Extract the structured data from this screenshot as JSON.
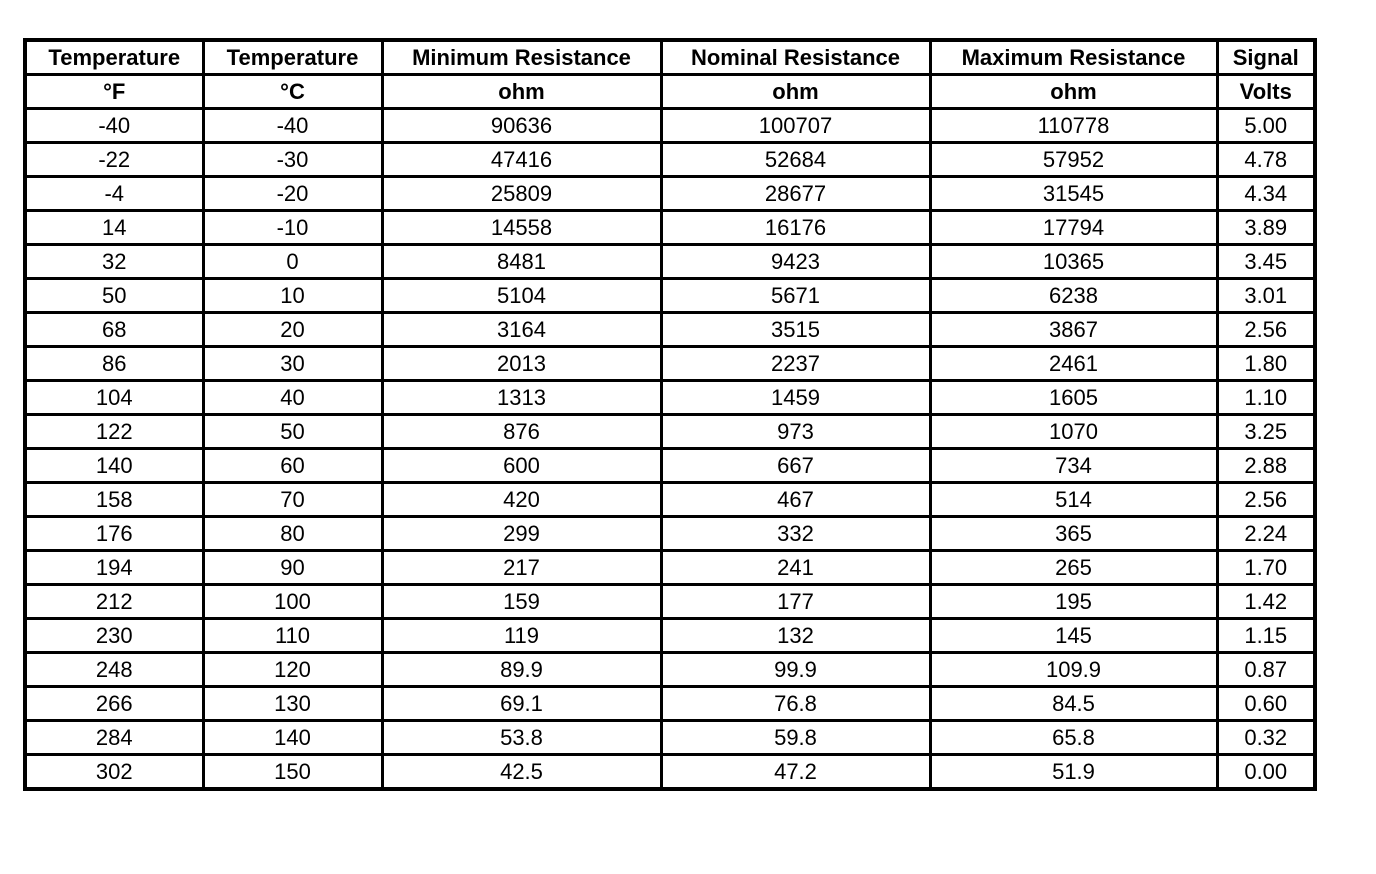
{
  "headers": [
    "Temperature",
    "Temperature",
    "Minimum Resistance",
    "Nominal Resistance",
    "Maximum Resistance",
    "Signal"
  ],
  "units": [
    "°F",
    "°C",
    "ohm",
    "ohm",
    "ohm",
    "Volts"
  ],
  "rows": [
    [
      "-40",
      "-40",
      "90636",
      "100707",
      "110778",
      "5.00"
    ],
    [
      "-22",
      "-30",
      "47416",
      "52684",
      "57952",
      "4.78"
    ],
    [
      "-4",
      "-20",
      "25809",
      "28677",
      "31545",
      "4.34"
    ],
    [
      "14",
      "-10",
      "14558",
      "16176",
      "17794",
      "3.89"
    ],
    [
      "32",
      "0",
      "8481",
      "9423",
      "10365",
      "3.45"
    ],
    [
      "50",
      "10",
      "5104",
      "5671",
      "6238",
      "3.01"
    ],
    [
      "68",
      "20",
      "3164",
      "3515",
      "3867",
      "2.56"
    ],
    [
      "86",
      "30",
      "2013",
      "2237",
      "2461",
      "1.80"
    ],
    [
      "104",
      "40",
      "1313",
      "1459",
      "1605",
      "1.10"
    ],
    [
      "122",
      "50",
      "876",
      "973",
      "1070",
      "3.25"
    ],
    [
      "140",
      "60",
      "600",
      "667",
      "734",
      "2.88"
    ],
    [
      "158",
      "70",
      "420",
      "467",
      "514",
      "2.56"
    ],
    [
      "176",
      "80",
      "299",
      "332",
      "365",
      "2.24"
    ],
    [
      "194",
      "90",
      "217",
      "241",
      "265",
      "1.70"
    ],
    [
      "212",
      "100",
      "159",
      "177",
      "195",
      "1.42"
    ],
    [
      "230",
      "110",
      "119",
      "132",
      "145",
      "1.15"
    ],
    [
      "248",
      "120",
      "89.9",
      "99.9",
      "109.9",
      "0.87"
    ],
    [
      "266",
      "130",
      "69.1",
      "76.8",
      "84.5",
      "0.60"
    ],
    [
      "284",
      "140",
      "53.8",
      "59.8",
      "65.8",
      "0.32"
    ],
    [
      "302",
      "150",
      "42.5",
      "47.2",
      "51.9",
      "0.00"
    ]
  ]
}
